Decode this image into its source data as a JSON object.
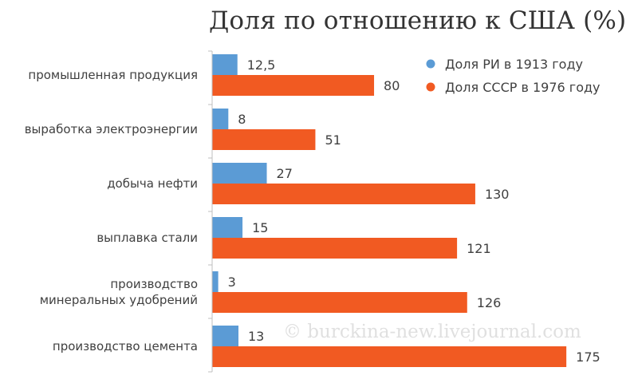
{
  "chart_data": {
    "type": "bar",
    "orientation": "horizontal",
    "title": "Доля по отношению к США (%)",
    "categories": [
      [
        "промышленная продукция"
      ],
      [
        "выработка электроэнергии"
      ],
      [
        "добыча нефти"
      ],
      [
        "выплавка стали"
      ],
      [
        "производство",
        "минеральных удобрений"
      ],
      [
        "производство цемента"
      ]
    ],
    "series": [
      {
        "name": "Доля РИ в 1913 году",
        "color": "#5b9bd5",
        "values": [
          12.5,
          8,
          27,
          15,
          3,
          13
        ],
        "labels": [
          "12,5",
          "8",
          "27",
          "15",
          "3",
          "13"
        ]
      },
      {
        "name": "Доля СССР в 1976 году",
        "color": "#f15a22",
        "values": [
          80,
          51,
          130,
          121,
          126,
          175
        ],
        "labels": [
          "80",
          "51",
          "130",
          "121",
          "126",
          "175"
        ]
      }
    ],
    "xlim": [
      0,
      190
    ],
    "legend": "top-right",
    "grid": false,
    "watermark": "© burckina-new.livejournal.com"
  }
}
